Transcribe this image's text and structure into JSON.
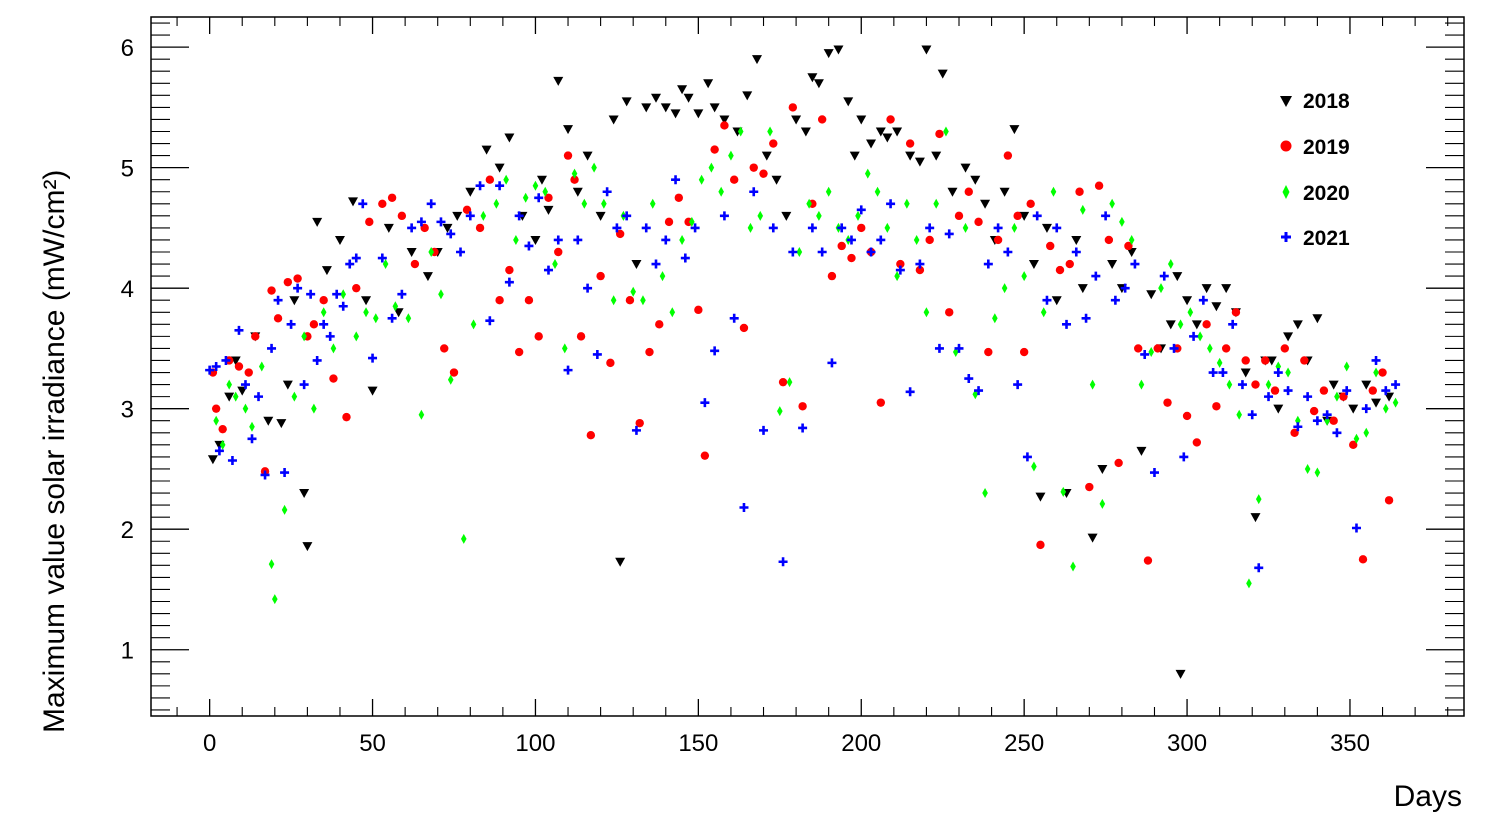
{
  "chart_data": {
    "type": "scatter",
    "title": "",
    "xlabel": "Days",
    "ylabel": "Maximum value solar irradiance (mW/cm²)",
    "xlim": [
      -18,
      385
    ],
    "ylim": [
      0.45,
      6.25
    ],
    "xticks": [
      0,
      50,
      100,
      150,
      200,
      250,
      300,
      350
    ],
    "yticks": [
      1,
      2,
      3,
      4,
      5,
      6
    ],
    "grid": false,
    "legend_position": "top-right",
    "series": [
      {
        "name": "2018",
        "marker": "triangle-down",
        "color": "#000000",
        "x": [
          1,
          3,
          6,
          8,
          10,
          14,
          18,
          22,
          24,
          26,
          29,
          30,
          33,
          36,
          40,
          44,
          48,
          50,
          55,
          58,
          62,
          67,
          70,
          73,
          76,
          80,
          85,
          89,
          92,
          96,
          100,
          102,
          104,
          107,
          110,
          113,
          116,
          120,
          124,
          126,
          128,
          131,
          134,
          137,
          140,
          143,
          145,
          147,
          150,
          153,
          155,
          158,
          162,
          165,
          168,
          171,
          174,
          177,
          180,
          183,
          185,
          187,
          190,
          193,
          196,
          198,
          200,
          203,
          206,
          208,
          211,
          215,
          218,
          220,
          223,
          225,
          228,
          232,
          235,
          238,
          241,
          244,
          247,
          250,
          253,
          255,
          257,
          260,
          263,
          266,
          268,
          271,
          274,
          277,
          280,
          283,
          286,
          289,
          292,
          295,
          297,
          298,
          300,
          303,
          306,
          309,
          312,
          315,
          318,
          321,
          324,
          326,
          328,
          331,
          334,
          337,
          340,
          343,
          345,
          348,
          351,
          355,
          358,
          362
        ],
        "y": [
          2.58,
          2.7,
          3.1,
          3.4,
          3.15,
          3.6,
          2.9,
          2.88,
          3.2,
          3.9,
          2.3,
          1.86,
          4.55,
          4.15,
          4.4,
          4.72,
          3.9,
          3.15,
          4.5,
          3.8,
          4.3,
          4.1,
          4.3,
          4.5,
          4.6,
          4.8,
          5.15,
          5.0,
          5.25,
          4.6,
          4.4,
          4.9,
          4.65,
          5.72,
          5.32,
          4.8,
          5.1,
          4.6,
          5.4,
          1.73,
          5.55,
          4.2,
          5.5,
          5.58,
          5.5,
          5.45,
          5.65,
          5.58,
          5.45,
          5.7,
          5.5,
          5.4,
          5.3,
          5.6,
          5.9,
          5.1,
          4.9,
          4.6,
          5.4,
          5.3,
          5.75,
          5.7,
          5.95,
          5.98,
          5.55,
          5.1,
          5.4,
          5.2,
          5.3,
          5.25,
          5.3,
          5.1,
          5.05,
          5.98,
          5.1,
          5.78,
          4.8,
          5.0,
          4.9,
          4.7,
          4.4,
          4.8,
          5.32,
          4.6,
          4.2,
          2.27,
          4.5,
          3.9,
          2.3,
          4.4,
          4.0,
          1.93,
          2.5,
          4.2,
          4.0,
          4.3,
          2.65,
          3.95,
          3.5,
          3.7,
          4.1,
          0.8,
          3.9,
          3.7,
          4.0,
          3.85,
          4.0,
          3.8,
          3.3,
          2.1,
          3.4,
          3.4,
          3.0,
          3.6,
          3.7,
          3.4,
          3.75,
          2.9,
          3.2,
          3.1,
          3.0,
          3.2,
          3.05,
          3.1
        ]
      },
      {
        "name": "2019",
        "marker": "circle",
        "color": "#ff0000",
        "x": [
          1,
          2,
          4,
          6,
          9,
          12,
          14,
          17,
          19,
          21,
          24,
          27,
          30,
          32,
          35,
          38,
          42,
          45,
          49,
          53,
          56,
          59,
          63,
          66,
          69,
          72,
          75,
          79,
          83,
          86,
          89,
          92,
          95,
          98,
          101,
          104,
          107,
          110,
          112,
          114,
          117,
          120,
          123,
          126,
          129,
          132,
          135,
          138,
          141,
          144,
          147,
          150,
          152,
          155,
          158,
          161,
          164,
          167,
          170,
          173,
          176,
          179,
          182,
          185,
          188,
          191,
          194,
          197,
          200,
          203,
          206,
          209,
          212,
          215,
          218,
          221,
          224,
          227,
          230,
          233,
          236,
          239,
          242,
          245,
          248,
          250,
          252,
          255,
          258,
          261,
          264,
          267,
          270,
          273,
          276,
          279,
          282,
          285,
          288,
          291,
          294,
          297,
          300,
          303,
          306,
          309,
          312,
          315,
          318,
          321,
          324,
          327,
          330,
          333,
          336,
          339,
          342,
          345,
          348,
          351,
          354,
          357,
          360,
          362
        ],
        "y": [
          3.3,
          3.0,
          2.83,
          3.4,
          3.35,
          3.3,
          3.6,
          2.48,
          3.98,
          3.75,
          4.05,
          4.08,
          3.6,
          3.7,
          3.9,
          3.25,
          2.93,
          4.0,
          4.55,
          4.7,
          4.75,
          4.6,
          4.2,
          4.5,
          4.3,
          3.5,
          3.3,
          4.65,
          4.5,
          4.9,
          3.9,
          4.15,
          3.47,
          3.9,
          3.6,
          4.75,
          4.3,
          5.1,
          4.9,
          3.6,
          2.78,
          4.1,
          3.38,
          4.45,
          3.9,
          2.88,
          3.47,
          3.7,
          4.55,
          4.75,
          4.55,
          3.82,
          2.61,
          5.15,
          5.35,
          4.9,
          3.67,
          5.0,
          4.95,
          5.2,
          3.22,
          5.5,
          3.02,
          4.7,
          5.4,
          4.1,
          4.35,
          4.25,
          4.5,
          4.3,
          3.05,
          5.4,
          4.2,
          5.2,
          4.15,
          4.4,
          5.28,
          3.8,
          4.6,
          4.8,
          4.55,
          3.47,
          4.4,
          5.1,
          4.6,
          3.47,
          4.7,
          1.87,
          4.35,
          4.15,
          4.2,
          4.8,
          2.35,
          4.85,
          4.4,
          2.55,
          4.35,
          3.5,
          1.74,
          3.5,
          3.05,
          3.5,
          2.94,
          2.72,
          3.7,
          3.02,
          3.5,
          3.8,
          3.4,
          3.2,
          3.4,
          3.15,
          3.5,
          2.8,
          3.4,
          2.98,
          3.15,
          2.9,
          3.1,
          2.7,
          1.75,
          3.15,
          3.3,
          2.24
        ]
      },
      {
        "name": "2020",
        "marker": "diamond",
        "color": "#00ff00",
        "x": [
          2,
          4,
          6,
          8,
          11,
          13,
          16,
          19,
          20,
          23,
          26,
          29,
          32,
          35,
          38,
          41,
          45,
          48,
          51,
          54,
          57,
          61,
          65,
          68,
          71,
          74,
          78,
          81,
          84,
          88,
          91,
          94,
          97,
          100,
          103,
          106,
          109,
          112,
          115,
          118,
          121,
          124,
          127,
          130,
          133,
          136,
          139,
          142,
          145,
          148,
          151,
          154,
          157,
          160,
          163,
          166,
          169,
          172,
          175,
          178,
          181,
          184,
          187,
          190,
          193,
          196,
          199,
          202,
          205,
          208,
          211,
          214,
          217,
          220,
          223,
          226,
          229,
          232,
          235,
          238,
          241,
          244,
          247,
          250,
          253,
          256,
          259,
          262,
          265,
          268,
          271,
          274,
          277,
          280,
          283,
          286,
          289,
          292,
          295,
          298,
          301,
          304,
          307,
          310,
          313,
          316,
          319,
          322,
          325,
          328,
          331,
          334,
          337,
          340,
          343,
          346,
          349,
          352,
          355,
          358,
          361,
          364
        ],
        "y": [
          2.9,
          2.7,
          3.2,
          3.1,
          3.0,
          2.85,
          3.35,
          1.71,
          1.42,
          2.16,
          3.1,
          3.6,
          3.0,
          3.8,
          3.5,
          3.95,
          3.6,
          3.8,
          3.75,
          4.2,
          3.85,
          3.75,
          2.95,
          4.3,
          3.95,
          3.24,
          1.92,
          3.7,
          4.6,
          4.7,
          4.9,
          4.4,
          4.75,
          4.85,
          4.8,
          4.2,
          3.5,
          4.95,
          4.7,
          5.0,
          4.7,
          3.9,
          4.6,
          3.97,
          3.9,
          4.7,
          4.1,
          3.8,
          4.4,
          4.55,
          4.9,
          5.0,
          4.8,
          5.1,
          5.3,
          4.5,
          4.6,
          5.3,
          2.98,
          3.22,
          4.3,
          4.7,
          4.6,
          4.8,
          4.5,
          4.4,
          4.6,
          4.95,
          4.8,
          4.5,
          4.1,
          4.7,
          4.4,
          3.8,
          4.7,
          5.3,
          3.47,
          4.5,
          3.12,
          2.3,
          3.75,
          4.0,
          4.5,
          4.1,
          2.52,
          3.8,
          4.8,
          2.31,
          1.69,
          4.65,
          3.2,
          2.21,
          4.7,
          4.55,
          4.4,
          3.2,
          3.47,
          4.0,
          4.2,
          3.7,
          3.8,
          3.6,
          3.5,
          3.38,
          3.2,
          2.95,
          1.55,
          2.25,
          3.2,
          3.35,
          3.3,
          2.9,
          2.5,
          2.47,
          2.9,
          3.1,
          3.35,
          2.75,
          2.8,
          3.3,
          3.0,
          3.05
        ]
      },
      {
        "name": "2021",
        "marker": "cross",
        "color": "#0000ff",
        "x": [
          0,
          2,
          3,
          5,
          7,
          9,
          11,
          13,
          15,
          17,
          19,
          21,
          23,
          25,
          27,
          29,
          31,
          33,
          35,
          37,
          39,
          41,
          43,
          45,
          47,
          50,
          53,
          56,
          59,
          62,
          65,
          68,
          71,
          74,
          77,
          80,
          83,
          86,
          89,
          92,
          95,
          98,
          101,
          104,
          107,
          110,
          113,
          116,
          119,
          122,
          125,
          128,
          131,
          134,
          137,
          140,
          143,
          146,
          149,
          152,
          155,
          158,
          161,
          164,
          167,
          170,
          173,
          176,
          179,
          182,
          185,
          188,
          191,
          194,
          197,
          200,
          203,
          206,
          209,
          212,
          215,
          218,
          221,
          224,
          227,
          230,
          233,
          236,
          239,
          242,
          245,
          248,
          251,
          254,
          257,
          260,
          263,
          266,
          269,
          272,
          275,
          278,
          281,
          284,
          287,
          290,
          293,
          296,
          299,
          302,
          305,
          308,
          311,
          314,
          317,
          320,
          322,
          325,
          328,
          331,
          334,
          337,
          340,
          343,
          346,
          349,
          352,
          355,
          358,
          361,
          364
        ],
        "y": [
          3.32,
          3.35,
          2.65,
          3.4,
          2.57,
          3.65,
          3.2,
          2.75,
          3.1,
          2.45,
          3.5,
          3.9,
          2.47,
          3.7,
          4.0,
          3.2,
          3.95,
          3.4,
          3.7,
          3.6,
          3.95,
          3.85,
          4.2,
          4.25,
          4.7,
          3.42,
          4.25,
          3.75,
          3.95,
          4.5,
          4.55,
          4.7,
          4.55,
          4.45,
          4.3,
          4.6,
          4.85,
          3.73,
          4.85,
          4.05,
          4.6,
          4.35,
          4.75,
          4.15,
          4.4,
          3.32,
          4.4,
          4.0,
          3.45,
          4.8,
          4.5,
          4.6,
          2.82,
          4.5,
          4.2,
          4.4,
          4.9,
          4.25,
          4.5,
          3.05,
          3.48,
          4.6,
          3.75,
          2.18,
          4.8,
          2.82,
          4.5,
          1.73,
          4.3,
          2.84,
          4.5,
          4.3,
          3.38,
          4.5,
          4.4,
          4.65,
          4.3,
          4.4,
          4.7,
          4.15,
          3.14,
          4.2,
          4.5,
          3.5,
          4.45,
          3.5,
          3.25,
          3.15,
          4.2,
          4.5,
          4.3,
          3.2,
          2.6,
          4.6,
          3.9,
          4.5,
          3.7,
          4.3,
          3.75,
          4.1,
          4.6,
          3.9,
          4.0,
          4.2,
          3.45,
          2.47,
          4.1,
          3.5,
          2.6,
          3.6,
          3.9,
          3.3,
          3.3,
          3.7,
          3.2,
          2.95,
          1.68,
          3.1,
          3.3,
          3.15,
          2.85,
          3.1,
          2.9,
          2.95,
          2.8,
          3.15,
          2.01,
          3.0,
          3.4,
          3.15,
          3.2
        ]
      }
    ]
  }
}
